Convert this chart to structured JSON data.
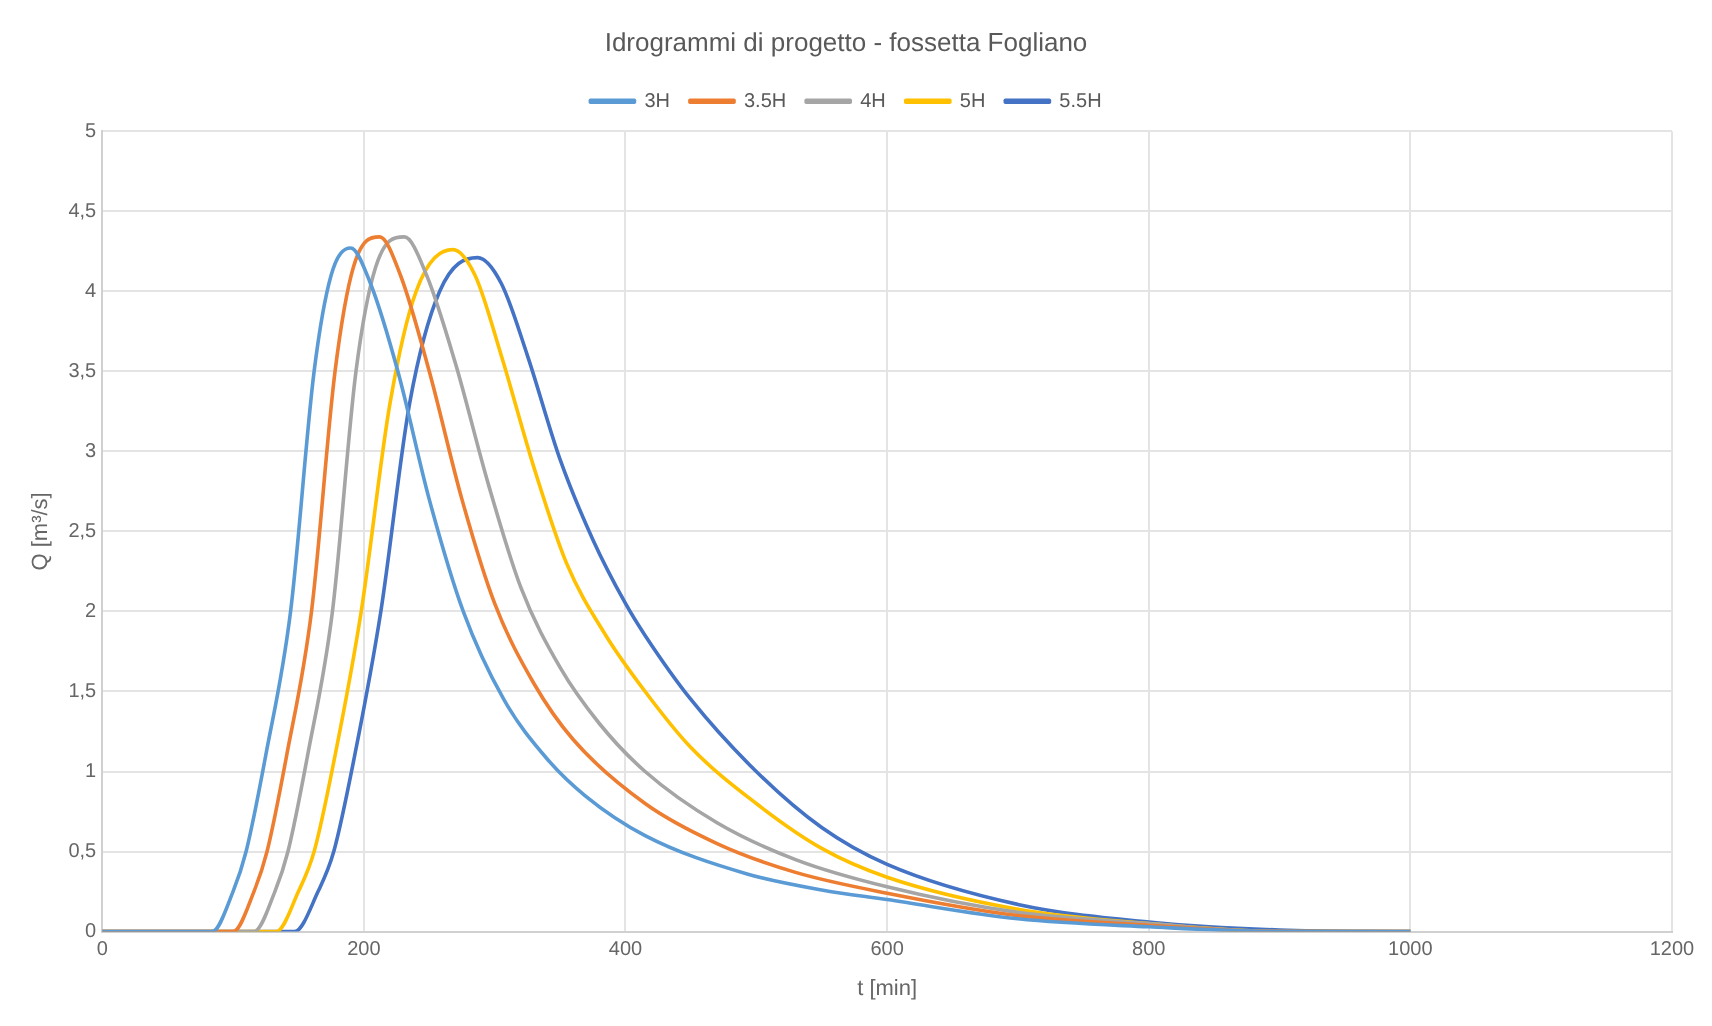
{
  "chart_data": {
    "type": "line",
    "title": "Idrogrammi di progetto - fossetta Fogliano",
    "xlabel": "t [min]",
    "ylabel": "Q [m³/s]",
    "legend": "top",
    "grid": true,
    "marker": "none",
    "line_style": "solid",
    "xlim": [
      0,
      1200
    ],
    "xticks": [
      0,
      200,
      400,
      600,
      800,
      1000,
      1200
    ],
    "ylim": [
      0,
      5
    ],
    "yticks": [
      0,
      {
        "value": 0.5,
        "label": "0,5"
      },
      1,
      {
        "value": 1.5,
        "label": "1,5"
      },
      2,
      {
        "value": 2.5,
        "label": "2,5"
      },
      3,
      {
        "value": 3.5,
        "label": "3,5"
      },
      4,
      {
        "value": 4.5,
        "label": "4,5"
      },
      5
    ],
    "series": [
      {
        "name": "3H",
        "color": "#5b9bd5",
        "x": [
          0,
          84,
          100,
          110,
          125,
          144,
          162,
          175,
          190,
          205,
          226,
          250,
          276,
          307,
          340,
          369,
          415,
          493,
          550,
          600,
          700,
          800,
          900,
          1000
        ],
        "values": [
          0,
          0,
          0.25,
          0.5,
          1.1,
          2,
          3.5,
          4.1,
          4.27,
          4.05,
          3.5,
          2.7,
          2,
          1.45,
          1.08,
          0.85,
          0.6,
          0.36,
          0.26,
          0.2,
          0.08,
          0.03,
          0,
          0
        ]
      },
      {
        "name": "3.5H",
        "color": "#ed7d31",
        "x": [
          0,
          100,
          116,
          126,
          141,
          160,
          178,
          192,
          212,
          228,
          250,
          275,
          300,
          330,
          360,
          415,
          470,
          530,
          600,
          700,
          800,
          900,
          1000
        ],
        "values": [
          0,
          0,
          0.25,
          0.5,
          1.1,
          2,
          3.5,
          4.15,
          4.34,
          4.1,
          3.5,
          2.7,
          2.05,
          1.55,
          1.2,
          0.8,
          0.55,
          0.37,
          0.24,
          0.1,
          0.04,
          0,
          0
        ]
      },
      {
        "name": "4H",
        "color": "#a5a5a5",
        "x": [
          0,
          116,
          132,
          142,
          157,
          176,
          194,
          209,
          231,
          248,
          270,
          295,
          320,
          350,
          380,
          415,
          470,
          530,
          600,
          700,
          800,
          900,
          1000
        ],
        "values": [
          0,
          0,
          0.25,
          0.5,
          1.1,
          2,
          3.5,
          4.15,
          4.34,
          4.1,
          3.55,
          2.8,
          2.15,
          1.65,
          1.3,
          1,
          0.68,
          0.45,
          0.28,
          0.12,
          0.05,
          0,
          0
        ]
      },
      {
        "name": "5H",
        "color": "#ffc000",
        "x": [
          0,
          133,
          150,
          162,
          178,
          198,
          220,
          240,
          268,
          285,
          305,
          330,
          355,
          385,
          415,
          450,
          500,
          550,
          600,
          700,
          800,
          900,
          1000
        ],
        "values": [
          0,
          0,
          0.25,
          0.5,
          1.1,
          2,
          3.3,
          4,
          4.26,
          4.1,
          3.6,
          2.9,
          2.3,
          1.85,
          1.5,
          1.15,
          0.8,
          0.52,
          0.34,
          0.14,
          0.05,
          0,
          0
        ]
      },
      {
        "name": "5.5H",
        "color": "#4472c4",
        "x": [
          0,
          147,
          165,
          177,
          193,
          213,
          235,
          258,
          287,
          305,
          325,
          350,
          375,
          400,
          415,
          450,
          500,
          550,
          600,
          700,
          800,
          900,
          1000
        ],
        "values": [
          0,
          0,
          0.25,
          0.5,
          1.1,
          2,
          3.3,
          4,
          4.21,
          4.05,
          3.6,
          2.95,
          2.45,
          2.05,
          1.85,
          1.45,
          1,
          0.65,
          0.42,
          0.17,
          0.06,
          0.01,
          0
        ]
      }
    ]
  }
}
